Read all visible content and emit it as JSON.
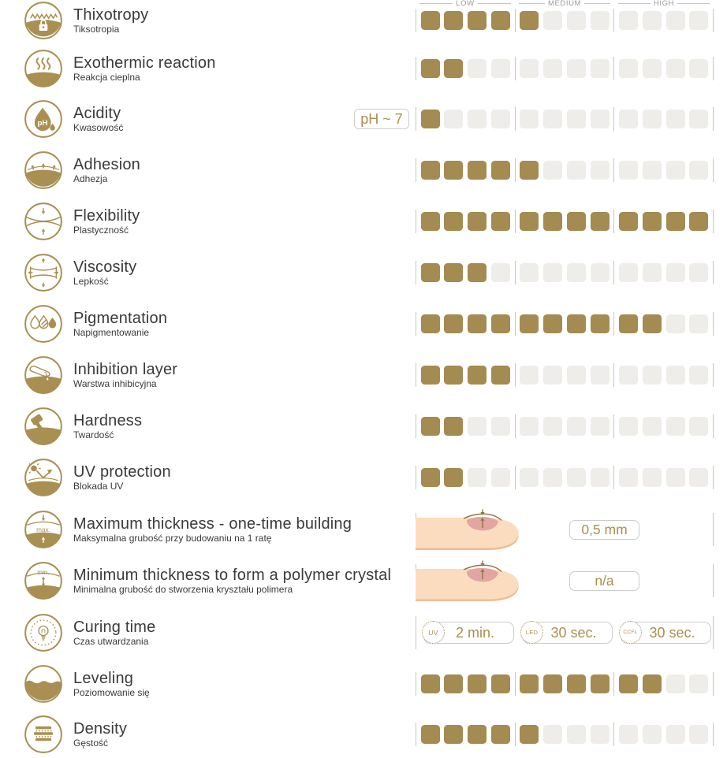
{
  "colors": {
    "accent_gold": "#a38b52",
    "icon_stroke_gold": "#a98f52",
    "empty_square": "#efedea",
    "divider_line": "#c8c6c3",
    "text": "#3a3a39",
    "scale_label": "#9b9b9b",
    "badge_border": "#cccccc",
    "finger_skin": "#fcdcbe",
    "finger_shadow": "#eebd94",
    "nail_pink": "#e2a5a1"
  },
  "scale": {
    "labels": [
      "LOW",
      "MEDIUM",
      "HIGH"
    ],
    "segments": 3,
    "squares_per_segment": 4
  },
  "rows": [
    {
      "id": "thixotropy",
      "title": "Thixotropy",
      "subtitle": "Tiksotropia",
      "type": "bar",
      "value": 5
    },
    {
      "id": "exothermic-reaction",
      "title": "Exothermic reaction",
      "subtitle": "Reakcja cieplna",
      "type": "bar",
      "value": 2
    },
    {
      "id": "acidity",
      "title": "Acidity",
      "subtitle": "Kwasowość",
      "type": "bar",
      "value": 1,
      "badge": "pH ~ 7"
    },
    {
      "id": "adhesion",
      "title": "Adhesion",
      "subtitle": "Adhezja",
      "type": "bar",
      "value": 5
    },
    {
      "id": "flexibility",
      "title": "Flexibility",
      "subtitle": "Plastyczność",
      "type": "bar",
      "value": 12
    },
    {
      "id": "viscosity",
      "title": "Viscosity",
      "subtitle": "Lepkość",
      "type": "bar",
      "value": 3
    },
    {
      "id": "pigmentation",
      "title": "Pigmentation",
      "subtitle": "Napigmentowanie",
      "type": "bar",
      "value": 10
    },
    {
      "id": "inhibition-layer",
      "title": "Inhibition layer",
      "subtitle": "Warstwa inhibicyjna",
      "type": "bar",
      "value": 4
    },
    {
      "id": "hardness",
      "title": "Hardness",
      "subtitle": "Twardość",
      "type": "bar",
      "value": 2
    },
    {
      "id": "uv-protection",
      "title": "UV protection",
      "subtitle": "Blokada UV",
      "type": "bar",
      "value": 2
    },
    {
      "id": "max-thickness",
      "title": "Maximum thickness - one-time building",
      "subtitle": "Maksymalna grubość przy budowaniu na 1 ratę",
      "type": "thickness",
      "value_label": "0,5 mm"
    },
    {
      "id": "min-thickness",
      "title": "Minimum thickness to form a polymer crystal",
      "subtitle": "Minimalna grubość do stworzenia kryształu polimera",
      "type": "thickness",
      "value_label": "n/a"
    },
    {
      "id": "curing-time",
      "title": "Curing time",
      "subtitle": "Czas utwardzania",
      "type": "curing",
      "badges": [
        {
          "lamp": "UV",
          "time": "2 min."
        },
        {
          "lamp": "LED",
          "time": "30 sec."
        },
        {
          "lamp": "CCFL",
          "time": "30 sec."
        }
      ]
    },
    {
      "id": "leveling",
      "title": "Leveling",
      "subtitle": "Poziomowanie się",
      "type": "bar",
      "value": 10
    },
    {
      "id": "density",
      "title": "Density",
      "subtitle": "Gęstość",
      "type": "bar",
      "value": 5
    }
  ],
  "chart_data": {
    "type": "bar",
    "categories": [
      "Thixotropy",
      "Exothermic reaction",
      "Acidity",
      "Adhesion",
      "Flexibility",
      "Viscosity",
      "Pigmentation",
      "Inhibition layer",
      "Hardness",
      "UV protection",
      "Maximum thickness - one-time building",
      "Minimum thickness to form a polymer crystal",
      "Curing time",
      "Leveling",
      "Density"
    ],
    "values": [
      5,
      2,
      1,
      5,
      12,
      3,
      10,
      4,
      2,
      2,
      null,
      null,
      null,
      10,
      5
    ],
    "value_max": 12,
    "scale_sections": [
      "LOW",
      "MEDIUM",
      "HIGH"
    ],
    "orientation": "horizontal",
    "text_values": {
      "Acidity": "pH ~ 7",
      "Maximum thickness - one-time building": "0,5 mm",
      "Minimum thickness to form a polymer crystal": "n/a",
      "Curing time": {
        "UV": "2 min.",
        "LED": "30 sec.",
        "CCFL": "30 sec."
      }
    }
  }
}
